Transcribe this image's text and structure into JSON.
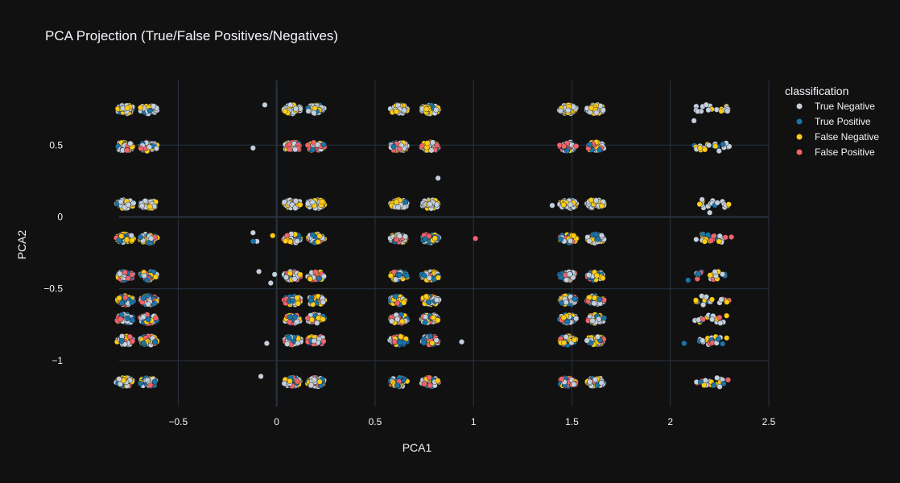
{
  "chart_data": {
    "type": "scatter",
    "title": "PCA Projection (True/False Positives/Negatives)",
    "xlabel": "PCA1",
    "ylabel": "PCA2",
    "xlim": [
      -0.8,
      2.5
    ],
    "ylim": [
      -1.32,
      0.95
    ],
    "x_ticks": [
      -0.5,
      0,
      0.5,
      1,
      1.5,
      2,
      2.5
    ],
    "x_tick_labels": [
      "−0.5",
      "0",
      "0.5",
      "1",
      "1.5",
      "2",
      "2.5"
    ],
    "y_ticks": [
      -1,
      -0.5,
      0,
      0.5
    ],
    "y_tick_labels": [
      "−1",
      "−0.5",
      "0",
      "0.5"
    ],
    "grid": true,
    "legend": {
      "title": "classification",
      "position": "top-right"
    },
    "series": [
      {
        "name": "True Negative",
        "color": "#c3cfdc"
      },
      {
        "name": "True Positive",
        "color": "#1a74a8"
      },
      {
        "name": "False Negative",
        "color": "#fecc16"
      },
      {
        "name": "False Positive",
        "color": "#f0636a"
      }
    ],
    "columns": [
      -0.77,
      -0.65,
      0.08,
      0.2,
      0.62,
      0.78,
      1.48,
      1.62,
      2.17,
      2.25
    ],
    "rows": [
      0.75,
      0.49,
      0.09,
      -0.15,
      -0.41,
      -0.58,
      -0.71,
      -0.86,
      -1.15
    ],
    "outliers": [
      {
        "x": -0.06,
        "y": 0.78,
        "series": "True Negative"
      },
      {
        "x": -0.12,
        "y": 0.48,
        "series": "True Negative"
      },
      {
        "x": 0.82,
        "y": 0.27,
        "series": "True Negative"
      },
      {
        "x": 1.4,
        "y": 0.08,
        "series": "True Negative"
      },
      {
        "x": 2.12,
        "y": 0.67,
        "series": "True Negative"
      },
      {
        "x": 2.2,
        "y": 0.03,
        "series": "True Negative"
      },
      {
        "x": -0.12,
        "y": -0.11,
        "series": "True Negative"
      },
      {
        "x": -0.1,
        "y": -0.17,
        "series": "True Negative"
      },
      {
        "x": -0.12,
        "y": -0.17,
        "series": "True Positive"
      },
      {
        "x": -0.02,
        "y": -0.13,
        "series": "False Negative"
      },
      {
        "x": 1.01,
        "y": -0.15,
        "series": "False Positive"
      },
      {
        "x": 2.31,
        "y": -0.14,
        "series": "False Positive"
      },
      {
        "x": -0.09,
        "y": -0.38,
        "series": "True Negative"
      },
      {
        "x": -0.01,
        "y": -0.4,
        "series": "True Negative"
      },
      {
        "x": -0.03,
        "y": -0.46,
        "series": "True Negative"
      },
      {
        "x": 2.09,
        "y": -0.44,
        "series": "True Positive"
      },
      {
        "x": 2.07,
        "y": -0.88,
        "series": "True Positive"
      },
      {
        "x": -0.05,
        "y": -0.88,
        "series": "True Negative"
      },
      {
        "x": 0.94,
        "y": -0.87,
        "series": "True Negative"
      },
      {
        "x": -0.08,
        "y": -1.11,
        "series": "True Negative"
      }
    ]
  }
}
